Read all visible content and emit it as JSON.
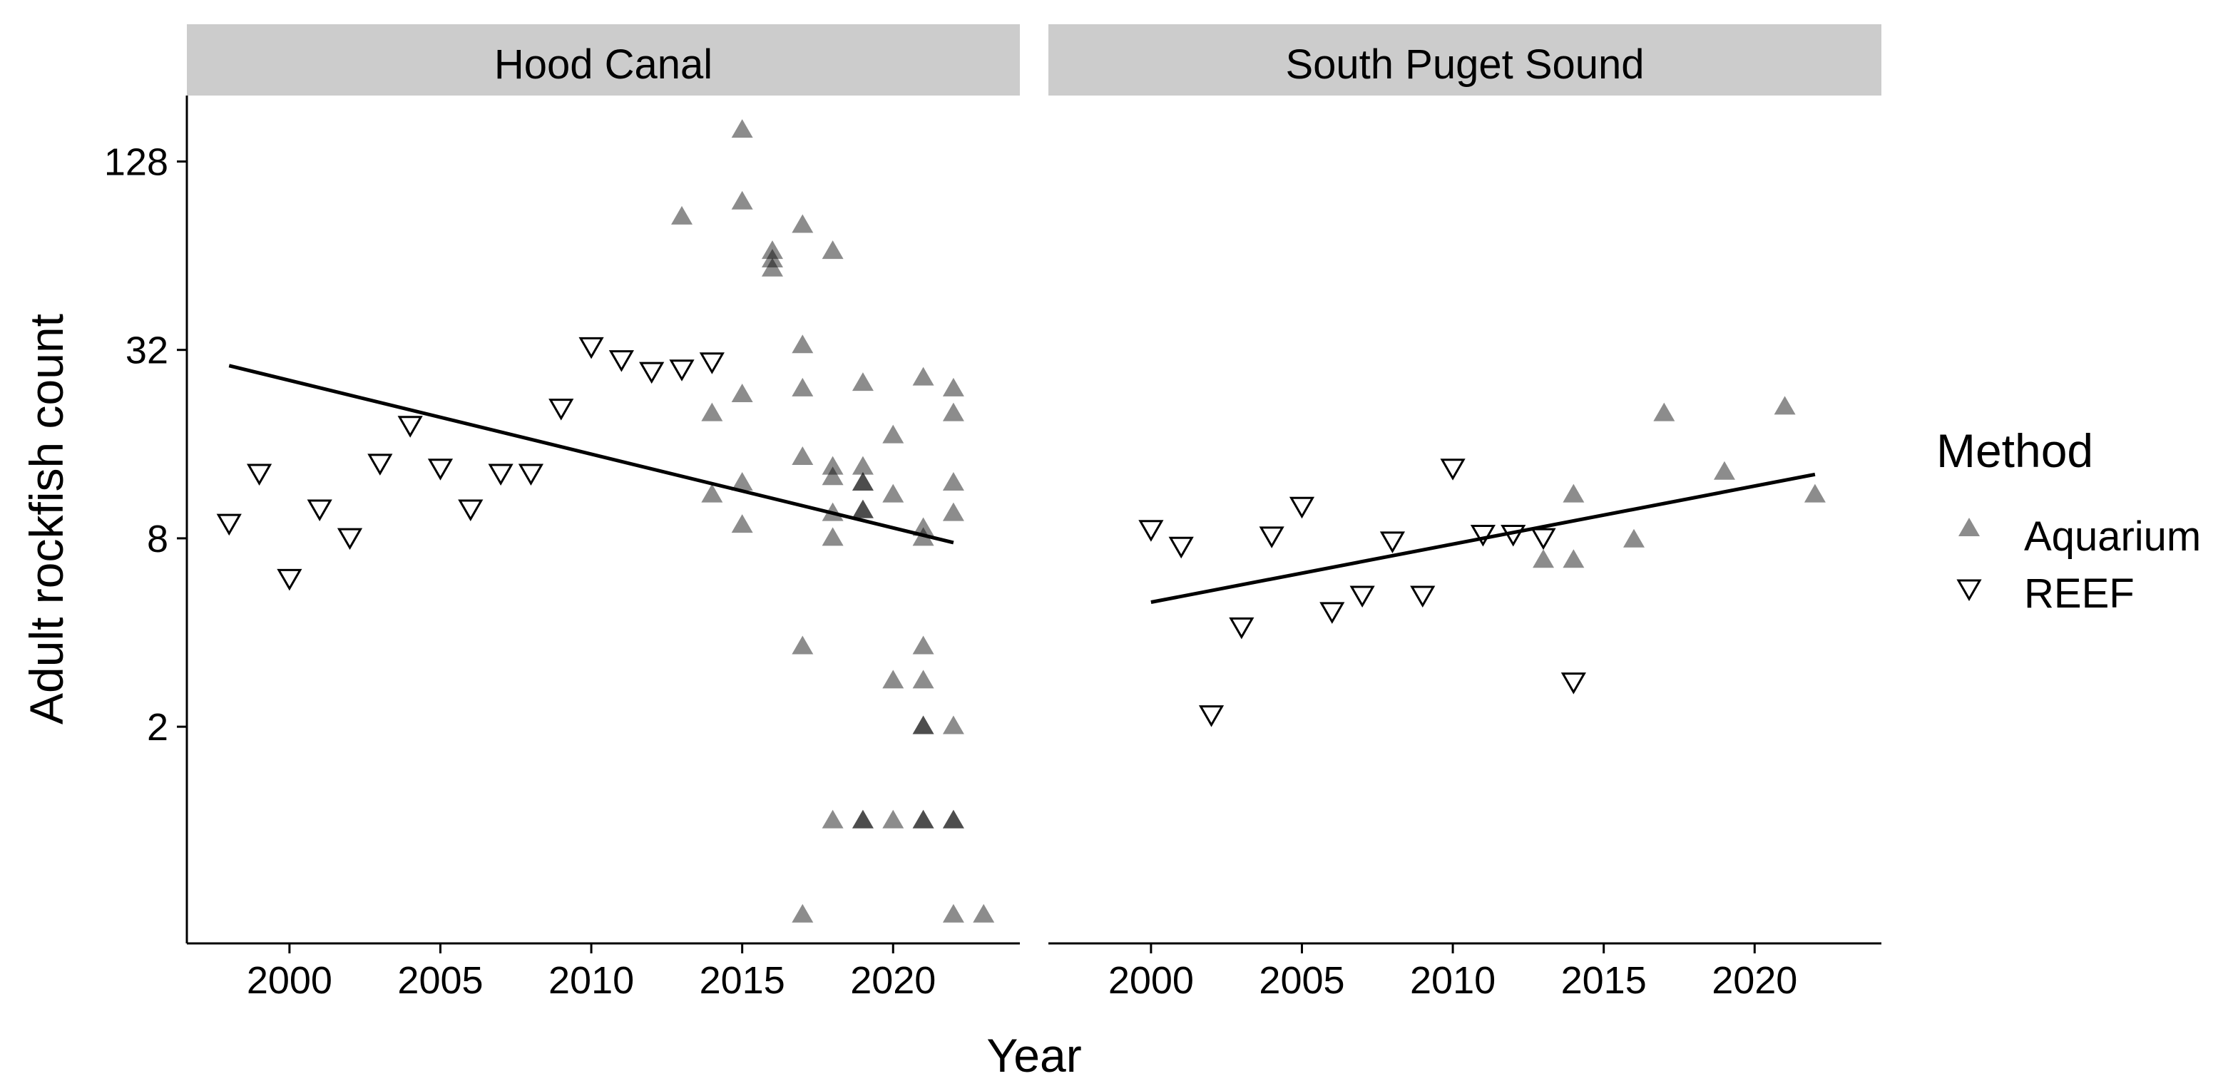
{
  "chart_data": {
    "type": "scatter",
    "facets": [
      "Hood Canal",
      "South Puget Sound"
    ],
    "xlabel": "Year",
    "ylabel": "Adult rockfish count",
    "y_scale": "log2",
    "y_ticks": [
      2,
      8,
      32,
      128
    ],
    "y_tick_labels": [
      "2",
      "8",
      "32",
      "128"
    ],
    "x_ticks": [
      2000,
      2005,
      2010,
      2015,
      2020
    ],
    "x_tick_labels": [
      "2000",
      "2005",
      "2010",
      "2015",
      "2020"
    ],
    "xlim": [
      1996.6,
      2024.2
    ],
    "ylim_log2": [
      -1.3,
      7.7
    ],
    "legend": {
      "title": "Method",
      "entries": [
        {
          "label": "Aquarium",
          "shape": "triangle-up-filled"
        },
        {
          "label": "REEF",
          "shape": "triangle-down-open"
        }
      ]
    },
    "colors": {
      "aquarium_fill": "#000000",
      "aquarium_opacity": 0.45,
      "reef_stroke": "#000000",
      "strip_bg": "#cccccc",
      "trend_line": "#000000"
    },
    "series": [
      {
        "facet": "Hood Canal",
        "name": "REEF",
        "points": [
          [
            1998,
            9.0
          ],
          [
            1999,
            13.0
          ],
          [
            2000,
            6.0
          ],
          [
            2001,
            10.0
          ],
          [
            2002,
            8.1
          ],
          [
            2003,
            14.0
          ],
          [
            2004,
            18.5
          ],
          [
            2005,
            13.5
          ],
          [
            2006,
            10.0
          ],
          [
            2007,
            13.0
          ],
          [
            2008,
            13.0
          ],
          [
            2009,
            21.0
          ],
          [
            2010,
            33.0
          ],
          [
            2011,
            30.0
          ],
          [
            2012,
            27.5
          ],
          [
            2013,
            28.0
          ],
          [
            2014,
            29.5
          ]
        ]
      },
      {
        "facet": "Hood Canal",
        "name": "Aquarium",
        "points": [
          [
            2013,
            85
          ],
          [
            2014,
            20
          ],
          [
            2014,
            11
          ],
          [
            2015,
            161
          ],
          [
            2015,
            95
          ],
          [
            2015,
            23
          ],
          [
            2015,
            12
          ],
          [
            2015,
            8.8
          ],
          [
            2016,
            66
          ],
          [
            2016,
            62
          ],
          [
            2016,
            58
          ],
          [
            2017,
            80
          ],
          [
            2017,
            33
          ],
          [
            2017,
            24
          ],
          [
            2017,
            14.5
          ],
          [
            2017,
            3.6
          ],
          [
            2017,
            0.5
          ],
          [
            2018,
            66
          ],
          [
            2018,
            13.5
          ],
          [
            2018,
            12.5
          ],
          [
            2018,
            9.6
          ],
          [
            2018,
            8.0
          ],
          [
            2018,
            1.0
          ],
          [
            2019,
            25
          ],
          [
            2019,
            13.5
          ],
          [
            2019,
            12
          ],
          [
            2019,
            12
          ],
          [
            2019,
            9.8
          ],
          [
            2019,
            9.8
          ],
          [
            2019,
            1.0
          ],
          [
            2019,
            1.0
          ],
          [
            2020,
            17
          ],
          [
            2020,
            11
          ],
          [
            2020,
            2.8
          ],
          [
            2020,
            1.0
          ],
          [
            2021,
            26
          ],
          [
            2021,
            8.6
          ],
          [
            2021,
            8.0
          ],
          [
            2021,
            3.6
          ],
          [
            2021,
            2.8
          ],
          [
            2021,
            2.0
          ],
          [
            2021,
            2.0
          ],
          [
            2021,
            1.0
          ],
          [
            2021,
            1.0
          ],
          [
            2022,
            24
          ],
          [
            2022,
            20
          ],
          [
            2022,
            12
          ],
          [
            2022,
            9.6
          ],
          [
            2022,
            2.0
          ],
          [
            2022,
            1.0
          ],
          [
            2022,
            1.0
          ],
          [
            2022,
            0.5
          ],
          [
            2023,
            0.5
          ]
        ]
      },
      {
        "facet": "Hood Canal",
        "name": "trend",
        "line": [
          [
            1998,
            28.5
          ],
          [
            2022,
            7.75
          ]
        ]
      },
      {
        "facet": "South Puget Sound",
        "name": "REEF",
        "points": [
          [
            2000,
            8.6
          ],
          [
            2001,
            7.6
          ],
          [
            2002,
            2.2
          ],
          [
            2003,
            4.2
          ],
          [
            2004,
            8.2
          ],
          [
            2005,
            10.2
          ],
          [
            2006,
            4.7
          ],
          [
            2007,
            5.3
          ],
          [
            2008,
            7.9
          ],
          [
            2009,
            5.3
          ],
          [
            2010,
            13.5
          ],
          [
            2011,
            8.3
          ],
          [
            2012,
            8.3
          ],
          [
            2013,
            8.1
          ],
          [
            2014,
            2.8
          ]
        ]
      },
      {
        "facet": "South Puget Sound",
        "name": "Aquarium",
        "points": [
          [
            2013,
            6.8
          ],
          [
            2014,
            11
          ],
          [
            2014,
            6.8
          ],
          [
            2016,
            7.9
          ],
          [
            2017,
            20
          ],
          [
            2019,
            13
          ],
          [
            2021,
            21
          ],
          [
            2022,
            11
          ]
        ]
      },
      {
        "facet": "South Puget Sound",
        "name": "trend",
        "line": [
          [
            2000,
            5.0
          ],
          [
            2022,
            12.8
          ]
        ]
      }
    ]
  }
}
